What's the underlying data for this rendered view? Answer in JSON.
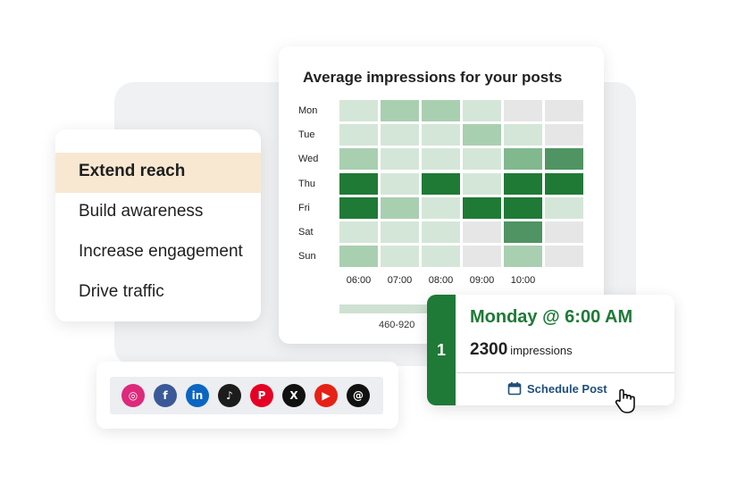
{
  "goals": {
    "items": [
      {
        "label": "Extend reach",
        "active": true
      },
      {
        "label": "Build awareness",
        "active": false
      },
      {
        "label": "Increase engagement",
        "active": false
      },
      {
        "label": "Drive traffic",
        "active": false
      }
    ]
  },
  "heatmap": {
    "title": "Average impressions for your posts",
    "legend_label": "460-920"
  },
  "chart_data": {
    "type": "heatmap",
    "title": "Average impressions for your posts",
    "rows": [
      "Mon",
      "Tue",
      "Wed",
      "Thu",
      "Fri",
      "Sat",
      "Sun"
    ],
    "columns": [
      "06:00",
      "07:00",
      "08:00",
      "09:00",
      "10:00",
      ""
    ],
    "intensity_levels": [
      [
        1,
        2,
        2,
        1,
        0,
        0
      ],
      [
        1,
        1,
        1,
        2,
        1,
        0
      ],
      [
        2,
        1,
        1,
        1,
        3,
        4
      ],
      [
        5,
        1,
        5,
        1,
        5,
        5
      ],
      [
        5,
        2,
        1,
        5,
        5,
        1
      ],
      [
        1,
        1,
        1,
        0,
        4,
        0
      ],
      [
        2,
        1,
        1,
        0,
        2,
        0
      ]
    ],
    "palette": [
      "#e6e6e6",
      "#d4e6d8",
      "#a9cfb1",
      "#82b88e",
      "#4f9462",
      "#1f7a36"
    ],
    "legend": "460-920"
  },
  "social": {
    "icons": [
      {
        "name": "instagram-icon",
        "color": "#dd2a7b",
        "glyph": "◎"
      },
      {
        "name": "facebook-icon",
        "color": "#3b5998",
        "glyph": "f"
      },
      {
        "name": "linkedin-icon",
        "color": "#0a66c2",
        "glyph": "in"
      },
      {
        "name": "tiktok-icon",
        "color": "#1c1c1c",
        "glyph": "♪"
      },
      {
        "name": "pinterest-icon",
        "color": "#e60023",
        "glyph": "P"
      },
      {
        "name": "x-icon",
        "color": "#111111",
        "glyph": "X"
      },
      {
        "name": "youtube-icon",
        "color": "#e62117",
        "glyph": "▶"
      },
      {
        "name": "threads-icon",
        "color": "#111111",
        "glyph": "@"
      }
    ]
  },
  "best_time": {
    "rank": "1",
    "day_time": "Monday  @ 6:00 AM",
    "impressions_value": "2300",
    "impressions_unit": "impressions",
    "schedule_label": "Schedule Post"
  },
  "colors": {
    "accent_green": "#1e7a36",
    "schedule_blue": "#1e4f7a",
    "active_goal_bg": "#f8e8d2"
  }
}
